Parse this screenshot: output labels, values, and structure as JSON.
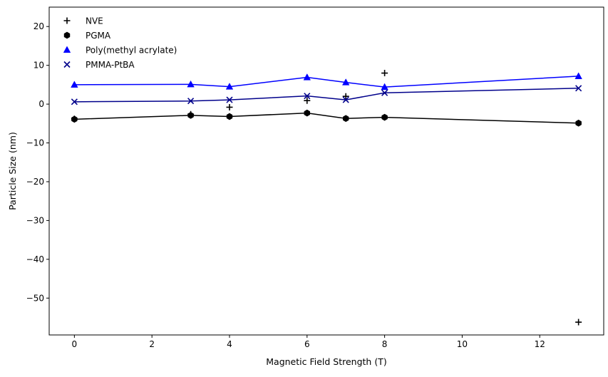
{
  "chart_data": {
    "type": "line",
    "title": "",
    "xlabel": "Magnetic Field Strength (T)",
    "ylabel": "Particle Size (nm)",
    "xlim": [
      -0.65,
      13.65
    ],
    "ylim": [
      -59.5,
      25.0
    ],
    "xticks": [
      0,
      2,
      4,
      6,
      8,
      10,
      12
    ],
    "yticks": [
      -50,
      -40,
      -30,
      -20,
      -10,
      0,
      10,
      20
    ],
    "grid": false,
    "legend_position": "top-left",
    "series": [
      {
        "name": "NVE",
        "marker": "plus",
        "color": "#000000",
        "line": false,
        "x": [
          0,
          3,
          4,
          6,
          7,
          8,
          13
        ],
        "y": [
          -3.8,
          -2.6,
          -0.8,
          0.9,
          2.0,
          8.0,
          -56.2
        ]
      },
      {
        "name": "PGMA",
        "marker": "hexagon",
        "color": "#000000",
        "line": true,
        "line_color": "#000000",
        "x": [
          0,
          3,
          4,
          6,
          7,
          8,
          13
        ],
        "y": [
          -3.9,
          -2.9,
          -3.2,
          -2.3,
          -3.7,
          -3.4,
          -4.9
        ]
      },
      {
        "name": "Poly(methyl acrylate)",
        "marker": "triangle",
        "color": "#0000ff",
        "line": true,
        "line_color": "#0000ff",
        "x": [
          0,
          3,
          4,
          6,
          7,
          8,
          13
        ],
        "y": [
          5.0,
          5.1,
          4.5,
          6.9,
          5.6,
          4.4,
          7.2
        ]
      },
      {
        "name": "PMMA-PtBA",
        "marker": "x",
        "color": "#00008b",
        "line": true,
        "line_color": "#00008b",
        "x": [
          0,
          3,
          4,
          6,
          7,
          8,
          13
        ],
        "y": [
          0.6,
          0.8,
          1.1,
          2.1,
          1.1,
          2.9,
          4.1
        ]
      }
    ]
  }
}
